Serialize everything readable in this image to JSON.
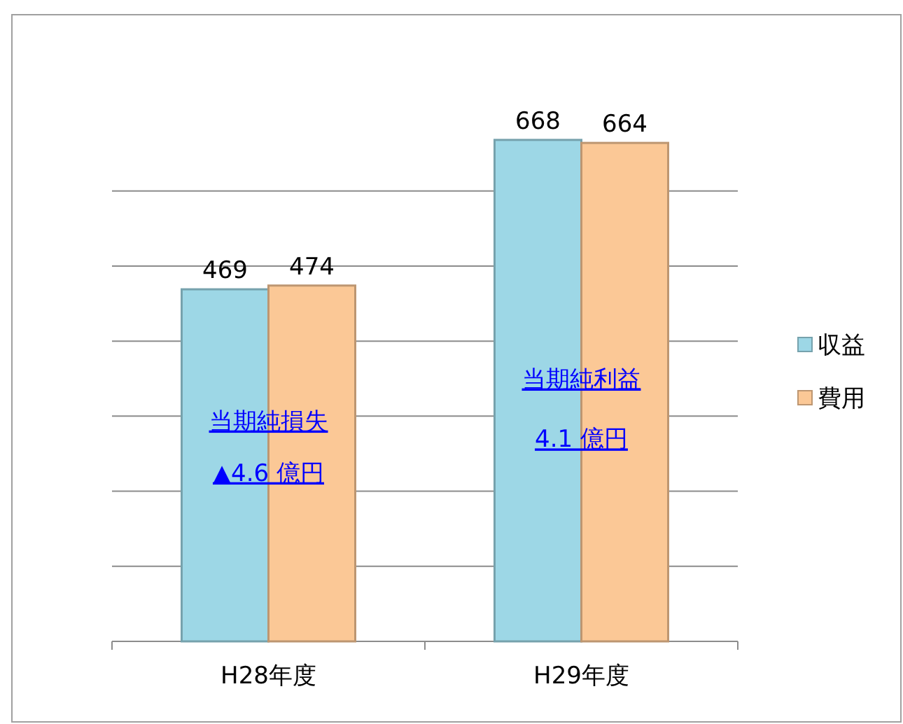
{
  "chart_data": {
    "type": "bar",
    "categories": [
      "H28年度",
      "H29年度"
    ],
    "series": [
      {
        "name": "収益",
        "color": "#9dd7e6",
        "values": [
          469,
          668
        ]
      },
      {
        "name": "費用",
        "color": "#fbc896",
        "values": [
          474,
          664
        ]
      }
    ],
    "yticks": [
      {
        "value": 0,
        "label": null
      },
      {
        "value": 100,
        "label": null
      },
      {
        "value": 200,
        "label": null
      },
      {
        "value": 300,
        "label": null
      },
      {
        "value": 400,
        "label": null
      },
      {
        "value": 500,
        "label": null
      },
      {
        "value": 600,
        "label": null
      }
    ],
    "tick_labels": "x",
    "grid": "y",
    "legend": "right",
    "data_labels": true,
    "annotations": [
      {
        "text": "当期純損失",
        "x": "H28年度",
        "y": 294
      },
      {
        "text": "▲4.6 億円",
        "x": "H28年度",
        "y": 225
      },
      {
        "text": "当期純利益",
        "x": "H29年度",
        "y": 350
      },
      {
        "text": "4.1 億円",
        "x": "H29年度",
        "y": 270
      }
    ]
  }
}
